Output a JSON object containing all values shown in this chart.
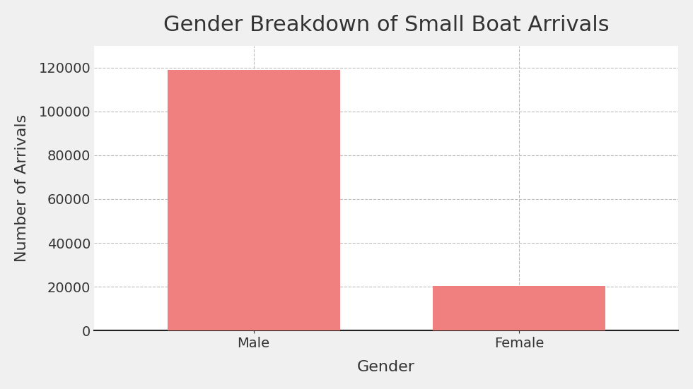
{
  "categories": [
    "Male",
    "Female"
  ],
  "values": [
    119000,
    20500
  ],
  "bar_color": "#F08080",
  "title": "Gender Breakdown of Small Boat Arrivals",
  "xlabel": "Gender",
  "ylabel": "Number of Arrivals",
  "ylim": [
    0,
    130000
  ],
  "yticks": [
    0,
    20000,
    40000,
    60000,
    80000,
    100000,
    120000
  ],
  "background_color": "#ffffff",
  "outer_background": "#f0f0f0",
  "title_fontsize": 22,
  "axis_label_fontsize": 16,
  "tick_fontsize": 14,
  "bar_width": 0.65,
  "grid_color": "#bbbbbb",
  "spine_color": "#222222"
}
